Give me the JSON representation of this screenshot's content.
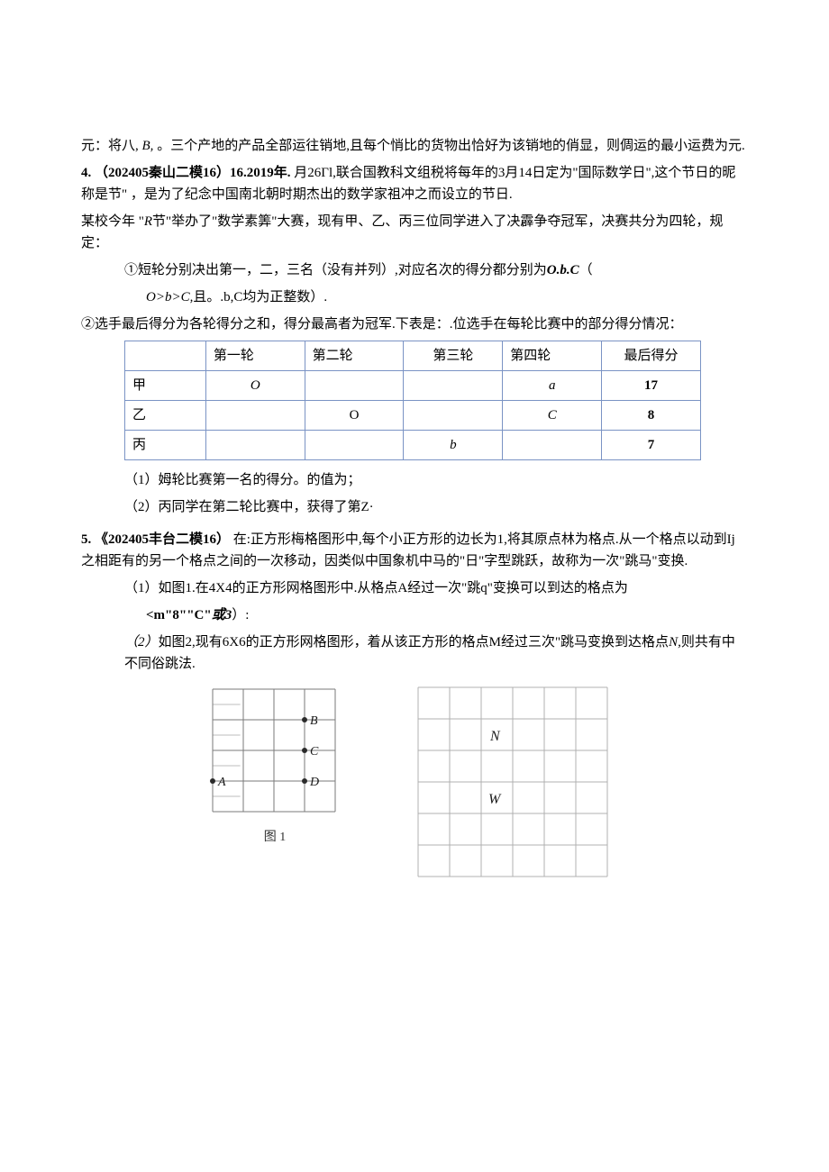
{
  "intro": {
    "line1_pre": "元：将八,",
    "line1_var": "B,",
    "line1_post": "。三个产地的产品全部运往销地,且每个悄比的货物出恰好为该销地的俏显，则倜运的最小运费为元."
  },
  "q4": {
    "header_pre": "4.",
    "header_ref": "（202405秦山二模16）16.2019年.",
    "header_post": "月26Γl,联合国教科文组税将每年的3月14日定为\"国际数学日\",这个节日的昵称是节\" ，是为了纪念中国南北朝时期杰出的数学家祖冲之而设立的节日.",
    "p1_pre": "某校今年 \"",
    "p1_var": "R",
    "p1_post": "节\"举办了\"数学素筭\"大赛，现有甲、乙、丙三位同学进入了决霹争夺冠军，决赛共分为四轮，规定：",
    "rule1_pre": "①短轮分别决出第一，二，三名（没有并列）,对应名次的得分都分别为",
    "rule1_obc": "O.b.C",
    "rule1_mid": "（",
    "rule1_cond_pre": "O>b>C,",
    "rule1_cond_post": "且。.b,C均为正整数）.",
    "rule2": "②选手最后得分为各轮得分之和，得分最高者为冠军.下表是：.位选手在每轮比赛中的部分得分情况：",
    "table": {
      "headers": [
        "",
        "第一轮",
        "第二轮",
        "第三轮",
        "第四轮",
        "最后得分"
      ],
      "rows": [
        {
          "label": "甲",
          "r1": "O",
          "r2": "",
          "r3": "",
          "r4": "a",
          "total": "17"
        },
        {
          "label": "乙",
          "r1": "",
          "r2": "O",
          "r3": "",
          "r4": "C",
          "total": "8"
        },
        {
          "label": "丙",
          "r1": "",
          "r2": "",
          "r3": "b",
          "r4": "",
          "total": "7"
        }
      ]
    },
    "sub1": "（1）姆轮比赛第一名的得分。的值为；",
    "sub2": "（2）丙同学在第二轮比赛中，获得了第Z·"
  },
  "q5": {
    "header_pre": "5.",
    "header_ref": "《202405丰台二模16）",
    "header_post": "在:正方形梅格图形中,每个小正方形的边长为1,将其原点林为格点.从一个格点以动到Ij之相距有的另一个格点之间的一次移动，因类似中国象机中马的\"日\"字型跳跃，故称为一次\"跳马\"变换.",
    "sub1_pre": "（1）如图1.在4X4的正方形网格图形中.从格点A经过一次\"跳q\"变换可以到达的格点为",
    "sub1_ans_pre": "<m\"8\"\"C\"",
    "sub1_ans_or": "或3",
    "sub1_ans_post": "）:",
    "sub2_pre": "（2）",
    "sub2_body": "如图2,现有6X6的正方形网格图形，着从该正方形的格点M经过三次\"跳马变换到达格点",
    "sub2_var": "N,",
    "sub2_post": "则共有中不同俗跳法.",
    "fig1_caption": "图 1",
    "grid1": {
      "labels": {
        "B": "B",
        "C": "C",
        "A": "A",
        "D": "D"
      }
    },
    "grid2": {
      "labels": {
        "N": "N",
        "W": "W"
      }
    },
    "colors": {
      "grid_line": "#7a7a7a",
      "grid2_line": "#b0b0b0",
      "dot": "#2a2a2a",
      "text": "#1a1a1a"
    }
  }
}
